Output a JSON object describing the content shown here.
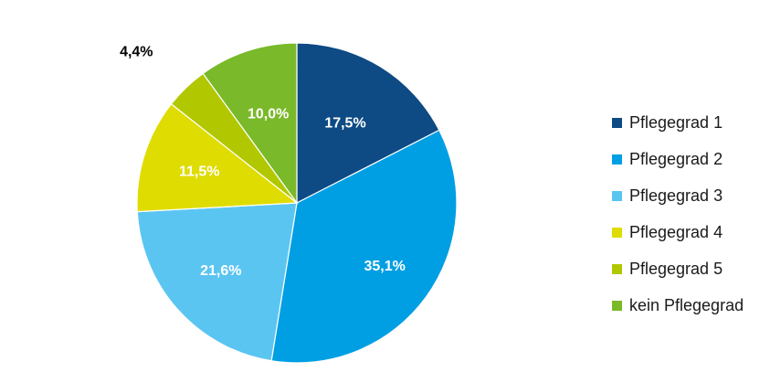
{
  "chart_data": {
    "type": "pie",
    "categories": [
      "Pflegegrad 1",
      "Pflegegrad 2",
      "Pflegegrad 3",
      "Pflegegrad 4",
      "Pflegegrad 5",
      "kein Pflegegrad"
    ],
    "values": [
      17.5,
      35.1,
      21.6,
      11.5,
      4.4,
      10.0
    ],
    "value_labels": [
      "17,5%",
      "35,1%",
      "21,6%",
      "11,5%",
      "4,4%",
      "10,0%"
    ],
    "colors": [
      "#0e4a84",
      "#009fe3",
      "#5bc5f2",
      "#dedc00",
      "#b1c800",
      "#7ab929"
    ],
    "start": "12 o'clock, clockwise",
    "legend_position": "right"
  },
  "legend": {
    "items": [
      {
        "label": "Pflegegrad 1",
        "color": "#0e4a84"
      },
      {
        "label": "Pflegegrad 2",
        "color": "#009fe3"
      },
      {
        "label": "Pflegegrad 3",
        "color": "#5bc5f2"
      },
      {
        "label": "Pflegegrad 4",
        "color": "#dedc00"
      },
      {
        "label": "Pflegegrad 5",
        "color": "#b1c800"
      },
      {
        "label": "kein Pflegegrad",
        "color": "#7ab929"
      }
    ]
  }
}
